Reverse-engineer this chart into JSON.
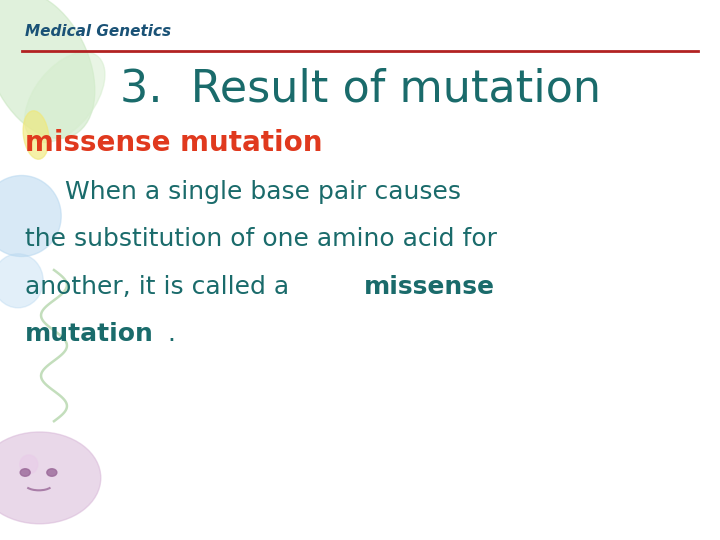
{
  "bg_color": "#ffffff",
  "header_text": "Medical Genetics",
  "header_color": "#1a5276",
  "header_fontsize": 11,
  "divider_color": "#b22222",
  "title_text": "3.  Result of mutation",
  "title_color": "#1a6b6b",
  "title_fontsize": 32,
  "subtitle_text": "missense mutation",
  "subtitle_color": "#e0391e",
  "subtitle_fontsize": 20,
  "body_color": "#1a6b6b",
  "body_fontsize": 18,
  "line1": "      When a single base pair causes",
  "line2": "the substitution of one amino acid for",
  "line3_a": "another, it is called a ",
  "line3_b": "missense",
  "line4_a": "mutation",
  "line4_b": "."
}
